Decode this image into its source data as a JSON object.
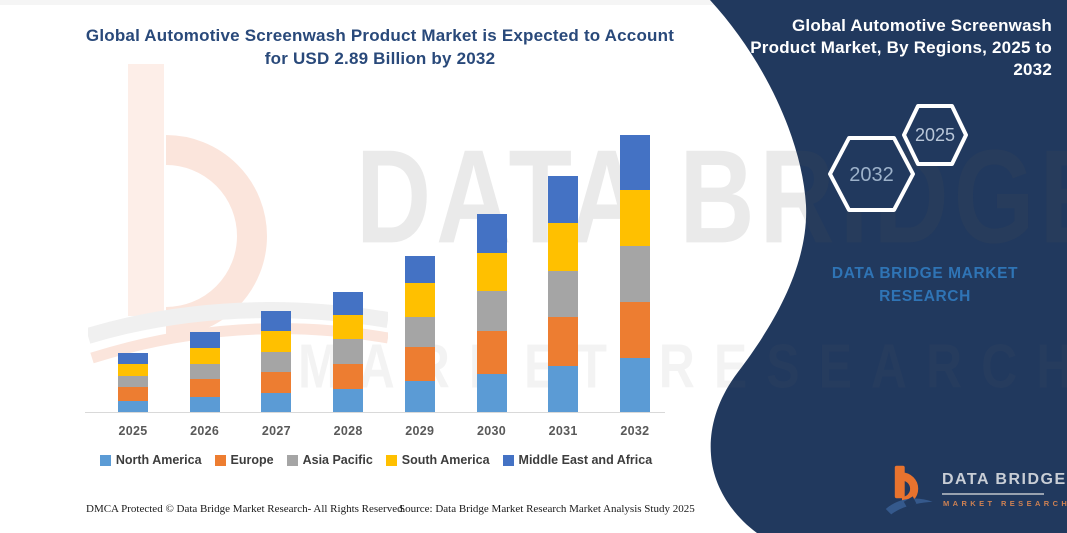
{
  "title": {
    "lines": [
      "Global Automotive Screenwash Product Market is Expected to Account",
      "for USD 2.89 Billion by 2032"
    ]
  },
  "side_panel": {
    "heading_lines": [
      "Global Automotive Screenwash",
      "Product Market, By Regions, 2025 to",
      "2032"
    ],
    "hexagons": [
      {
        "label": "2032"
      },
      {
        "label": "2025"
      }
    ],
    "brand_lines": [
      "DATA BRIDGE MARKET",
      "RESEARCH"
    ],
    "panel_color": "#21395e",
    "brand_text_color": "#2f74b5"
  },
  "logo": {
    "name": "DATA BRIDGE",
    "tagline": "MARKET RESEARCH",
    "orange": "#e8732e",
    "blue": "#35598c"
  },
  "watermark": {
    "line1": "DATA BRIDGE",
    "line2": "MARKET RESEARCH"
  },
  "footer": {
    "left": "DMCA Protected © Data Bridge Market Research-  All Rights Reserved.",
    "source": "Source: Data Bridge Market Research  Market Analysis Study 2025"
  },
  "chart_data": {
    "type": "bar",
    "stacked": true,
    "title": "Global Automotive Screenwash Product Market, By Regions, 2025 to 2032",
    "unit": "USD Billion",
    "categories": [
      "2025",
      "2026",
      "2027",
      "2028",
      "2029",
      "2030",
      "2031",
      "2032"
    ],
    "series": [
      {
        "name": "North America",
        "color": "#5b9bd5",
        "values": [
          0.11,
          0.16,
          0.2,
          0.24,
          0.32,
          0.4,
          0.48,
          0.56
        ]
      },
      {
        "name": "Europe",
        "color": "#ed7d31",
        "values": [
          0.15,
          0.18,
          0.22,
          0.26,
          0.36,
          0.44,
          0.51,
          0.59
        ]
      },
      {
        "name": "Asia Pacific",
        "color": "#a5a5a5",
        "values": [
          0.11,
          0.16,
          0.21,
          0.26,
          0.31,
          0.42,
          0.48,
          0.58
        ]
      },
      {
        "name": "South America",
        "color": "#ffc000",
        "values": [
          0.13,
          0.17,
          0.21,
          0.25,
          0.35,
          0.4,
          0.5,
          0.58
        ]
      },
      {
        "name": "Middle East and Africa",
        "color": "#4472c4",
        "values": [
          0.11,
          0.16,
          0.21,
          0.24,
          0.29,
          0.4,
          0.49,
          0.58
        ]
      }
    ],
    "totals": [
      0.61,
      0.83,
      1.05,
      1.25,
      1.63,
      2.06,
      2.46,
      2.89
    ],
    "highlight_total_2032": "2.89",
    "legend_position": "bottom",
    "grid": false,
    "y_axis_visible": false,
    "ylim": [
      0,
      3.0
    ]
  }
}
